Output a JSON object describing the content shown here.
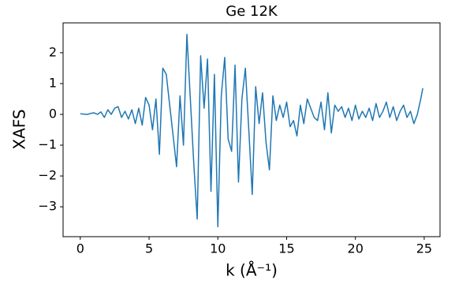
{
  "chart_data": {
    "type": "line",
    "title": "Ge 12K",
    "x_label": "k (Å⁻¹)",
    "y_label": "XAFS",
    "x": [
      0,
      0.25,
      0.5,
      0.75,
      1,
      1.25,
      1.5,
      1.75,
      2,
      2.25,
      2.5,
      2.75,
      3,
      3.25,
      3.5,
      3.75,
      4,
      4.25,
      4.5,
      4.75,
      5,
      5.25,
      5.5,
      5.75,
      6,
      6.25,
      6.5,
      6.75,
      7,
      7.25,
      7.5,
      7.75,
      8,
      8.25,
      8.5,
      8.75,
      9,
      9.25,
      9.5,
      9.75,
      10,
      10.25,
      10.5,
      10.75,
      11,
      11.25,
      11.5,
      11.75,
      12,
      12.25,
      12.5,
      12.75,
      13,
      13.25,
      13.5,
      13.75,
      14,
      14.25,
      14.5,
      14.75,
      15,
      15.25,
      15.5,
      15.75,
      16,
      16.25,
      16.5,
      16.75,
      17,
      17.25,
      17.5,
      17.75,
      18,
      18.25,
      18.5,
      18.75,
      19,
      19.25,
      19.5,
      19.75,
      20,
      20.25,
      20.5,
      20.75,
      21,
      21.25,
      21.5,
      21.75,
      22,
      22.25,
      22.5,
      22.75,
      23,
      23.25,
      23.5,
      23.75,
      24,
      24.25,
      24.5,
      24.75,
      24.9
    ],
    "values": [
      0.02,
      0.01,
      0.0,
      0.03,
      0.05,
      0.0,
      0.08,
      -0.1,
      0.15,
      0.0,
      0.2,
      0.25,
      -0.1,
      0.1,
      -0.15,
      0.15,
      -0.3,
      0.2,
      -0.35,
      0.55,
      0.3,
      -0.5,
      0.5,
      -1.3,
      1.5,
      1.3,
      0.3,
      -0.7,
      -1.7,
      0.6,
      -1.0,
      2.6,
      0.5,
      -1.6,
      -3.4,
      1.9,
      0.2,
      1.8,
      -2.5,
      1.3,
      -3.65,
      0.6,
      1.85,
      -0.8,
      -1.2,
      1.6,
      -2.2,
      0.5,
      1.5,
      -0.5,
      -2.6,
      0.9,
      -0.3,
      0.7,
      -0.9,
      -1.8,
      0.6,
      -0.2,
      0.3,
      -0.1,
      0.4,
      -0.4,
      -0.2,
      -0.7,
      0.3,
      -0.3,
      0.5,
      0.2,
      -0.1,
      -0.2,
      0.4,
      -0.5,
      0.7,
      -0.6,
      0.3,
      0.1,
      0.25,
      -0.1,
      0.2,
      -0.2,
      0.3,
      -0.15,
      0.1,
      -0.1,
      0.2,
      -0.2,
      0.35,
      -0.1,
      0.1,
      0.4,
      -0.1,
      0.25,
      -0.2,
      0.1,
      0.3,
      -0.1,
      0.1,
      -0.3,
      0.0,
      0.5,
      0.85
    ],
    "color": "#1f77b4",
    "xlim": [
      -1.25,
      26.15
    ],
    "ylim": [
      -3.97,
      2.97
    ],
    "xticks": [
      0,
      5,
      10,
      15,
      20,
      25
    ],
    "yticks": [
      {
        "value": -3,
        "label": "−3"
      },
      {
        "value": -2,
        "label": "−2"
      },
      {
        "value": -1,
        "label": "−1"
      },
      0,
      1,
      2
    ]
  }
}
